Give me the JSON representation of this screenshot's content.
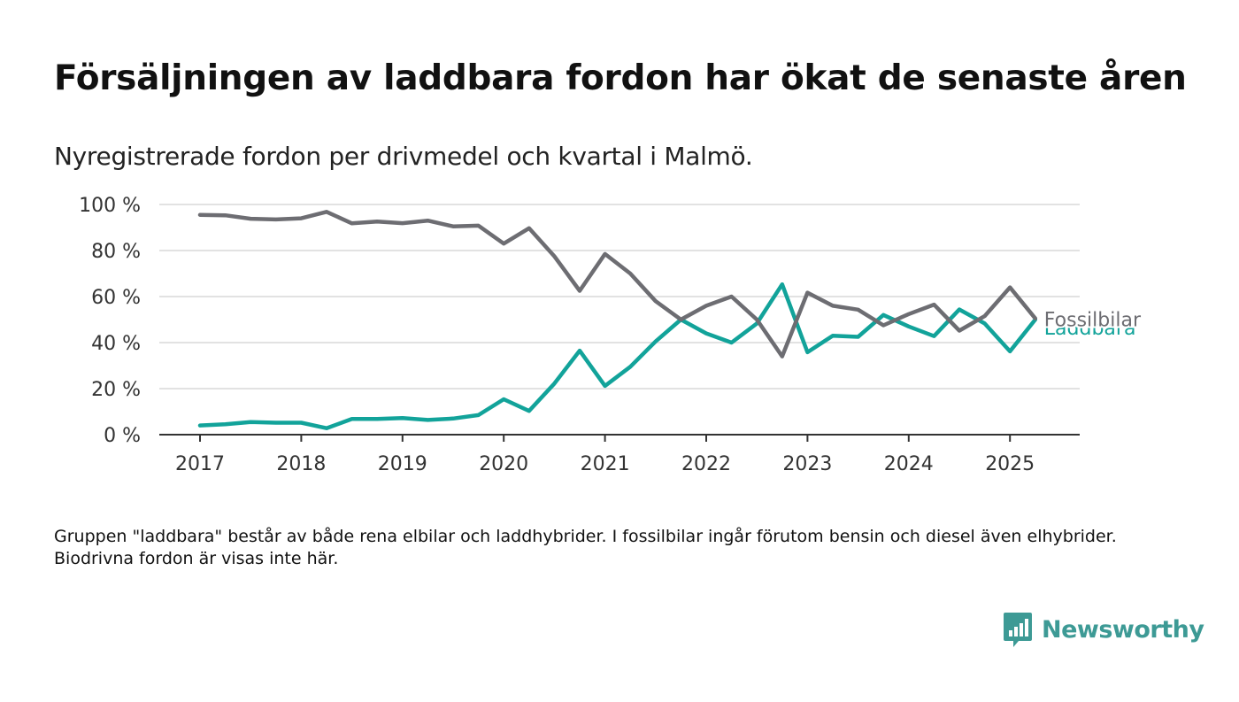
{
  "title": "Försäljningen av laddbara fordon har ökat de senaste åren",
  "subtitle": "Nyregistrerade fordon per drivmedel och kvartal i Malmö.",
  "footnote": "Gruppen \"laddbara\" består av både rena elbilar och laddhybrider. I fossilbilar ingår förutom bensin och diesel även elhybrider. Biodrivna fordon är visas inte här.",
  "brand": {
    "name": "Newsworthy",
    "icon": "newsworthy-logo-icon",
    "color": "#3d9a95"
  },
  "chart_data": {
    "type": "line",
    "x_tick_labels": [
      "2017",
      "2018",
      "2019",
      "2020",
      "2021",
      "2022",
      "2023",
      "2024",
      "2025"
    ],
    "y_tick_labels": [
      "0 %",
      "20 %",
      "40 %",
      "60 %",
      "80 %",
      "100 %"
    ],
    "ylim": [
      0,
      100
    ],
    "y_ticks": [
      0,
      20,
      40,
      60,
      80,
      100
    ],
    "grid": true,
    "x": [
      "2017 Q1",
      "2017 Q2",
      "2017 Q3",
      "2017 Q4",
      "2018 Q1",
      "2018 Q2",
      "2018 Q3",
      "2018 Q4",
      "2019 Q1",
      "2019 Q2",
      "2019 Q3",
      "2019 Q4",
      "2020 Q1",
      "2020 Q2",
      "2020 Q3",
      "2020 Q4",
      "2021 Q1",
      "2021 Q2",
      "2021 Q3",
      "2021 Q4",
      "2022 Q1",
      "2022 Q2",
      "2022 Q3",
      "2022 Q4",
      "2023 Q1",
      "2023 Q2",
      "2023 Q3",
      "2023 Q4",
      "2024 Q1",
      "2024 Q2",
      "2024 Q3",
      "2024 Q4",
      "2025 Q1",
      "2025 Q2"
    ],
    "series": [
      {
        "name": "Fossilbilar",
        "color": "#6d6d72",
        "values": [
          95.5,
          95.3,
          93.8,
          93.5,
          94.0,
          96.8,
          91.8,
          92.6,
          91.9,
          93.0,
          90.5,
          90.8,
          83.0,
          89.7,
          77.5,
          62.5,
          78.5,
          70.0,
          58.0,
          50.0,
          56.0,
          60.0,
          50.0,
          34.0,
          61.7,
          56.0,
          54.3,
          47.5,
          52.4,
          56.5,
          45.2,
          51.5,
          64.0,
          50.5
        ]
      },
      {
        "name": "Laddbara",
        "color": "#12a39a",
        "values": [
          4.0,
          4.5,
          5.5,
          5.2,
          5.2,
          2.8,
          6.8,
          6.8,
          7.2,
          6.4,
          7.0,
          8.5,
          15.4,
          10.3,
          22.2,
          36.5,
          21.2,
          29.5,
          40.5,
          50.0,
          44.0,
          40.0,
          48.3,
          65.3,
          35.8,
          43.0,
          42.5,
          52.0,
          47.0,
          42.8,
          54.4,
          48.3,
          36.2,
          50.0
        ]
      }
    ]
  }
}
